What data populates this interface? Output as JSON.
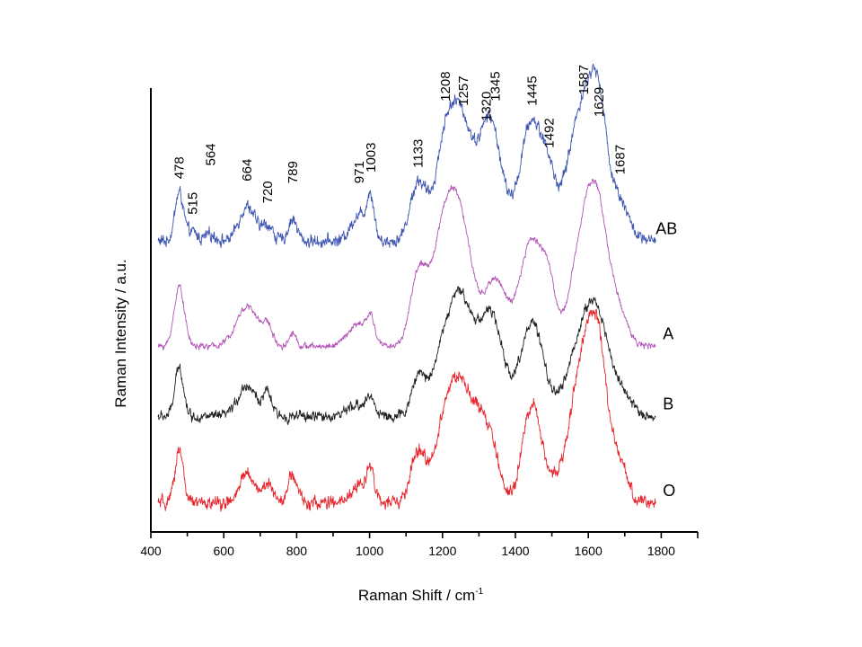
{
  "chart_data": {
    "type": "line",
    "title": "",
    "xlabel": "Raman Shift / cm",
    "xlabel_superscript": "-1",
    "ylabel": "Raman Intensity / a.u.",
    "xlim": [
      400,
      1900
    ],
    "ylim": [
      0,
      100
    ],
    "x_ticks": [
      400,
      600,
      800,
      1000,
      1200,
      1400,
      1600,
      1800
    ],
    "x_tick_labels": [
      "400",
      "600",
      "800",
      "1000",
      "1200",
      "1400",
      "1600",
      "1800"
    ],
    "x_minor_ticks": [
      500,
      700,
      900,
      1100,
      1300,
      1500,
      1700,
      1900
    ],
    "y_ticks": [],
    "grid": false,
    "x_range_data": [
      420,
      1785
    ],
    "series": [
      {
        "name": "AB",
        "color": "#3d55b0",
        "offset": 65.5,
        "noise": 1.8,
        "slope": 0.0,
        "peaks": [
          {
            "center": 478,
            "height": 11,
            "width": 12
          },
          {
            "center": 515,
            "height": 2,
            "width": 12
          },
          {
            "center": 564,
            "height": 1.5,
            "width": 15
          },
          {
            "center": 664,
            "height": 8,
            "width": 22
          },
          {
            "center": 720,
            "height": 3.5,
            "width": 15
          },
          {
            "center": 789,
            "height": 5,
            "width": 12
          },
          {
            "center": 971,
            "height": 6,
            "width": 22
          },
          {
            "center": 1003,
            "height": 9,
            "width": 10
          },
          {
            "center": 1133,
            "height": 13,
            "width": 22
          },
          {
            "center": 1208,
            "height": 21,
            "width": 28
          },
          {
            "center": 1257,
            "height": 24,
            "width": 30
          },
          {
            "center": 1320,
            "height": 15,
            "width": 25
          },
          {
            "center": 1345,
            "height": 15,
            "width": 28
          },
          {
            "center": 1445,
            "height": 27,
            "width": 32
          },
          {
            "center": 1492,
            "height": 8,
            "width": 18
          },
          {
            "center": 1587,
            "height": 31,
            "width": 42
          },
          {
            "center": 1629,
            "height": 17,
            "width": 22
          },
          {
            "center": 1687,
            "height": 8,
            "width": 25
          }
        ]
      },
      {
        "name": "A",
        "color": "#b455b8",
        "offset": 41.8,
        "noise": 0.9,
        "slope": 0.0,
        "peaks": [
          {
            "center": 478,
            "height": 13.5,
            "width": 14
          },
          {
            "center": 664,
            "height": 9,
            "width": 30
          },
          {
            "center": 720,
            "height": 4,
            "width": 14
          },
          {
            "center": 789,
            "height": 3,
            "width": 10
          },
          {
            "center": 971,
            "height": 5,
            "width": 30
          },
          {
            "center": 1003,
            "height": 4.5,
            "width": 10
          },
          {
            "center": 1133,
            "height": 15,
            "width": 22
          },
          {
            "center": 1208,
            "height": 28,
            "width": 35
          },
          {
            "center": 1257,
            "height": 19,
            "width": 30
          },
          {
            "center": 1345,
            "height": 15,
            "width": 30
          },
          {
            "center": 1445,
            "height": 24,
            "width": 32
          },
          {
            "center": 1492,
            "height": 10,
            "width": 18
          },
          {
            "center": 1587,
            "height": 23,
            "width": 35
          },
          {
            "center": 1629,
            "height": 23,
            "width": 30
          },
          {
            "center": 1687,
            "height": 6,
            "width": 25
          }
        ]
      },
      {
        "name": "B",
        "color": "#222222",
        "offset": 26.0,
        "noise": 1.5,
        "slope": 0.0,
        "peaks": [
          {
            "center": 478,
            "height": 11,
            "width": 12
          },
          {
            "center": 664,
            "height": 7,
            "width": 25
          },
          {
            "center": 720,
            "height": 5,
            "width": 12
          },
          {
            "center": 971,
            "height": 2.5,
            "width": 30
          },
          {
            "center": 1003,
            "height": 3,
            "width": 12
          },
          {
            "center": 1133,
            "height": 8,
            "width": 18
          },
          {
            "center": 1208,
            "height": 16,
            "width": 35
          },
          {
            "center": 1257,
            "height": 20,
            "width": 30
          },
          {
            "center": 1320,
            "height": 13,
            "width": 30
          },
          {
            "center": 1345,
            "height": 12,
            "width": 30
          },
          {
            "center": 1445,
            "height": 21,
            "width": 32
          },
          {
            "center": 1587,
            "height": 18,
            "width": 40
          },
          {
            "center": 1629,
            "height": 13,
            "width": 30
          },
          {
            "center": 1687,
            "height": 5,
            "width": 30
          }
        ]
      },
      {
        "name": "O",
        "color": "#e8232a",
        "offset": 6.5,
        "noise": 1.9,
        "slope": 0.0,
        "peaks": [
          {
            "center": 478,
            "height": 12.5,
            "width": 11
          },
          {
            "center": 664,
            "height": 7,
            "width": 18
          },
          {
            "center": 720,
            "height": 4,
            "width": 18
          },
          {
            "center": 789,
            "height": 6,
            "width": 14
          },
          {
            "center": 971,
            "height": 4,
            "width": 20
          },
          {
            "center": 1003,
            "height": 8,
            "width": 10
          },
          {
            "center": 1133,
            "height": 11,
            "width": 20
          },
          {
            "center": 1208,
            "height": 17,
            "width": 30
          },
          {
            "center": 1257,
            "height": 21,
            "width": 32
          },
          {
            "center": 1320,
            "height": 16,
            "width": 30
          },
          {
            "center": 1445,
            "height": 22,
            "width": 25
          },
          {
            "center": 1492,
            "height": 3,
            "width": 18
          },
          {
            "center": 1587,
            "height": 32,
            "width": 38
          },
          {
            "center": 1629,
            "height": 22,
            "width": 25
          },
          {
            "center": 1687,
            "height": 8,
            "width": 22
          }
        ]
      }
    ],
    "series_labels": [
      {
        "text": "AB",
        "series": "AB"
      },
      {
        "text": "A",
        "series": "A"
      },
      {
        "text": "B",
        "series": "B"
      },
      {
        "text": "O",
        "series": "O"
      }
    ],
    "annotations": [
      {
        "text": "478",
        "x": 478,
        "y": 79.5
      },
      {
        "text": "515",
        "x": 515,
        "y": 71.5
      },
      {
        "text": "564",
        "x": 564,
        "y": 82.5
      },
      {
        "text": "664",
        "x": 664,
        "y": 79
      },
      {
        "text": "720",
        "x": 720,
        "y": 74
      },
      {
        "text": "789",
        "x": 789,
        "y": 78.5
      },
      {
        "text": "971",
        "x": 971,
        "y": 78.5
      },
      {
        "text": "1003",
        "x": 1003,
        "y": 81
      },
      {
        "text": "1133",
        "x": 1133,
        "y": 82
      },
      {
        "text": "1208",
        "x": 1208,
        "y": 97
      },
      {
        "text": "1257",
        "x": 1257,
        "y": 96
      },
      {
        "text": "1320",
        "x": 1320,
        "y": 92.5
      },
      {
        "text": "1345",
        "x": 1345,
        "y": 97
      },
      {
        "text": "1445",
        "x": 1445,
        "y": 96
      },
      {
        "text": "1492",
        "x": 1492,
        "y": 86.5
      },
      {
        "text": "1587",
        "x": 1587,
        "y": 98.5
      },
      {
        "text": "1629",
        "x": 1629,
        "y": 93.5
      },
      {
        "text": "1687",
        "x": 1687,
        "y": 80.5
      }
    ]
  }
}
